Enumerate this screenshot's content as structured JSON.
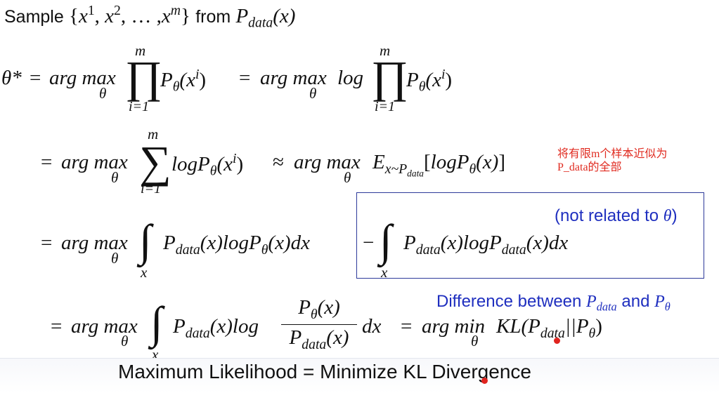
{
  "slide": {
    "line1": {
      "sample_word": "Sample",
      "set_open": "{",
      "x": "x",
      "sup1": "1",
      "sup2": "2",
      "ellipsis": ", … ,",
      "supm": "m",
      "set_close": "}",
      "from_word": "from",
      "P": "P",
      "sub_data": "data",
      "arg": "(x)"
    },
    "line2": {
      "theta_star": "θ*",
      "equals": "=",
      "argmax": "arg max",
      "sub_theta": "θ",
      "prod": "∏",
      "upper_m": "m",
      "lower_i1": "i=1",
      "term": "P",
      "term_sub": "θ",
      "term_arg_open": "(x",
      "term_arg_sup": "i",
      "term_arg_close": ")",
      "log": "log"
    },
    "line3": {
      "equals": "=",
      "argmax": "arg max",
      "sub_theta": "θ",
      "sum": "∑",
      "upper_m": "m",
      "lower_i1": "i=1",
      "logP": "logP",
      "approx": "≈",
      "E": "E",
      "E_sub": "x~P",
      "E_subsub": "data",
      "bracket_open": "[",
      "bracket_close": "]"
    },
    "line4": {
      "equals": "=",
      "argmax": "arg max",
      "sub_theta": "θ",
      "integral": "∫",
      "int_sub": "x",
      "P": "P",
      "sub_data": "data",
      "mid": "(x)logP",
      "sub_theta2": "θ",
      "tail": "(x)dx",
      "minus": "−",
      "tail2_mid": "(x)logP",
      "tail2_end": "(x)dx"
    },
    "line5": {
      "equals": "=",
      "argmax": "arg max",
      "sub_theta": "θ",
      "integral": "∫",
      "int_sub": "x",
      "P": "P",
      "sub_data": "data",
      "mid": "(x)log",
      "frac_num": "(x)",
      "frac_den": "(x)",
      "dx": "dx",
      "argmin": "arg min",
      "kl": "KL(P",
      "kl_mid": "||P",
      "kl_end": ")"
    },
    "note_red": [
      "将有限m个样本近似为",
      "P_data的全部"
    ],
    "note_box": {
      "open": "(not related to ",
      "theta": "θ",
      "close": ")"
    },
    "note_diff": {
      "text": "Difference between ",
      "P": "P",
      "sub_data": "data",
      "and": " and ",
      "sub_theta": "θ"
    },
    "footer_title": "Maximum Likelihood = Minimize KL Divergence",
    "colors": {
      "red_note": "#e02b20",
      "blue_note": "#1f2fbf",
      "box_border": "#2d3a9a"
    }
  }
}
